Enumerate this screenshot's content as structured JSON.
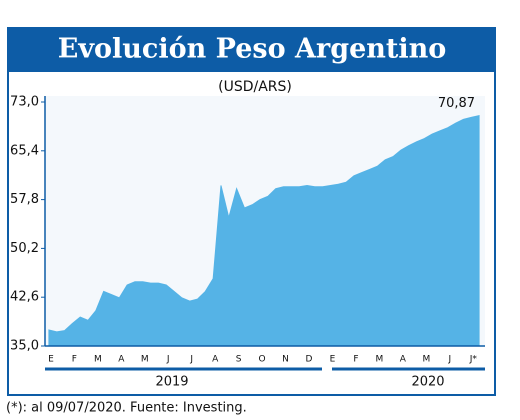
{
  "chart_data": {
    "type": "area",
    "title": "Evolución Peso Argentino",
    "subtitle": "(USD/ARS)",
    "categories": [
      "E",
      null,
      null,
      "F",
      null,
      null,
      "M",
      null,
      null,
      "A",
      null,
      null,
      "M",
      null,
      null,
      "J",
      null,
      null,
      "J",
      null,
      null,
      "A",
      null,
      null,
      "S",
      null,
      null,
      "O",
      null,
      null,
      "N",
      null,
      null,
      "D",
      null,
      null,
      "E",
      null,
      null,
      "F",
      null,
      null,
      "M",
      null,
      null,
      "A",
      null,
      null,
      "M",
      null,
      null,
      "J",
      null,
      null,
      "J*",
      null
    ],
    "values": [
      37.5,
      37.2,
      37.4,
      38.5,
      39.5,
      39.0,
      40.5,
      43.5,
      43.0,
      42.5,
      44.5,
      45.0,
      45.0,
      44.8,
      44.8,
      44.5,
      43.5,
      42.5,
      42.0,
      42.3,
      43.5,
      45.5,
      60.0,
      55.0,
      59.5,
      56.5,
      57.0,
      57.8,
      58.3,
      59.5,
      59.8,
      59.8,
      59.8,
      60.0,
      59.8,
      59.8,
      60.0,
      60.2,
      60.5,
      61.5,
      62.0,
      62.5,
      63.0,
      64.0,
      64.5,
      65.5,
      66.2,
      66.8,
      67.3,
      68.0,
      68.5,
      69.0,
      69.7,
      70.3,
      70.6,
      70.87
    ],
    "value_labels": [
      null,
      null,
      null,
      null,
      null,
      null,
      null,
      null,
      null,
      null,
      null,
      null,
      null,
      null,
      null,
      null,
      null,
      null,
      null,
      null,
      null,
      null,
      null,
      null,
      null,
      null,
      null,
      null,
      null,
      null,
      null,
      null,
      null,
      null,
      null,
      null,
      null,
      null,
      null,
      null,
      null,
      null,
      null,
      null,
      null,
      null,
      null,
      null,
      null,
      null,
      null,
      null,
      null,
      null,
      null,
      "70,87"
    ],
    "color": "#55b3e6",
    "ylim": [
      35,
      73
    ],
    "yticks": [
      {
        "value": 35,
        "label": "35,0"
      },
      {
        "value": 42.6,
        "label": "42,6"
      },
      {
        "value": 50.2,
        "label": "50,2"
      },
      {
        "value": 57.8,
        "label": "57,8"
      },
      {
        "value": 65.4,
        "label": "65,4"
      },
      {
        "value": 73,
        "label": "73,0"
      }
    ],
    "years": [
      "2019",
      "2020"
    ],
    "note": "(*): al 09/07/2020. Fuente: Investing."
  }
}
